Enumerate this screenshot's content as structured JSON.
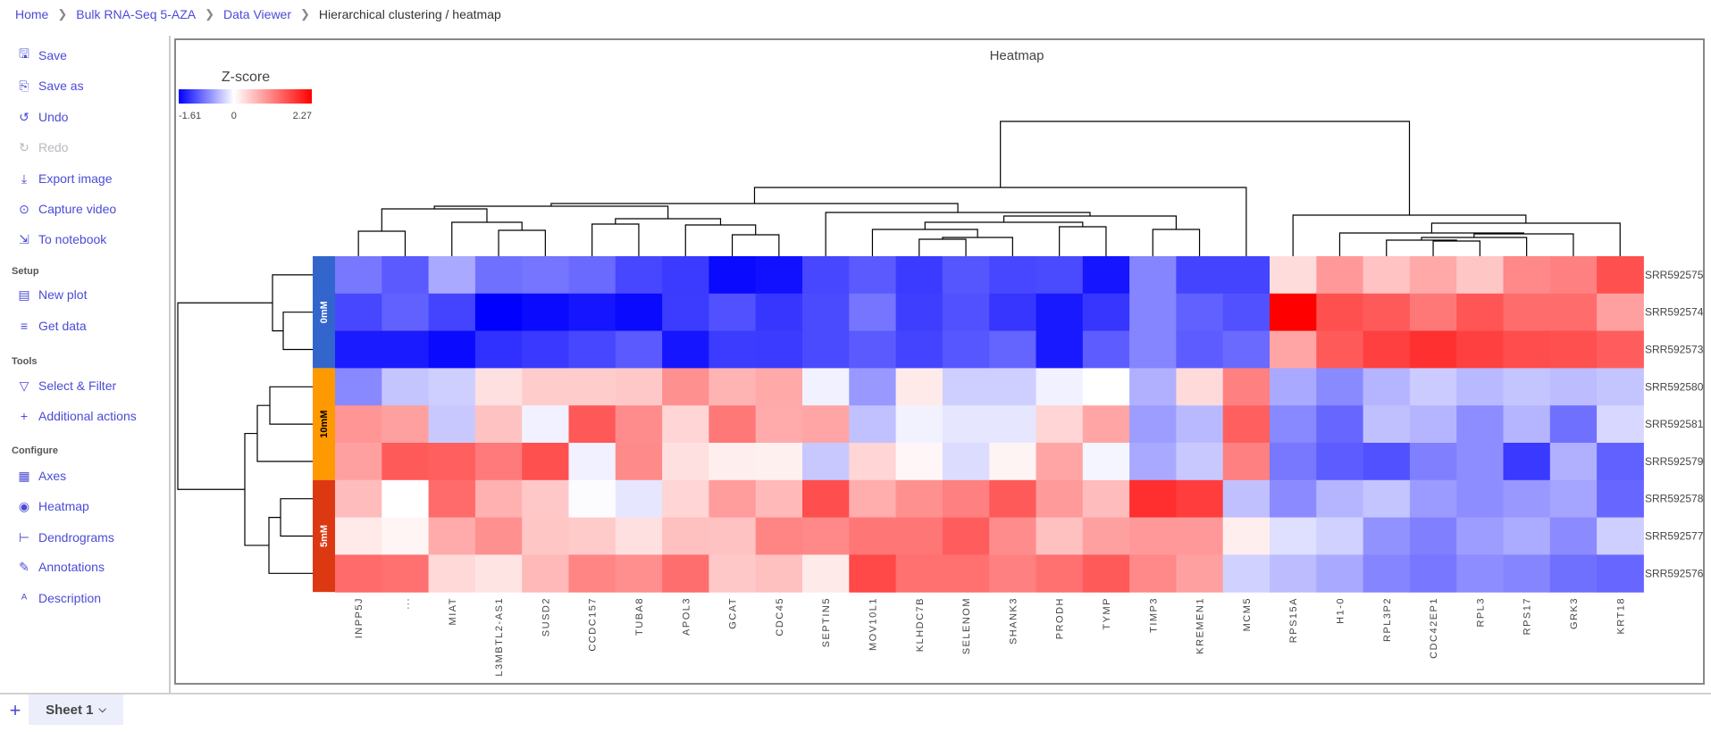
{
  "breadcrumb": [
    "Home",
    "Bulk RNA-Seq 5-AZA",
    "Data Viewer",
    "Hierarchical clustering / heatmap"
  ],
  "sidebar": {
    "items_top": [
      {
        "label": "Save",
        "icon": "save-icon"
      },
      {
        "label": "Save as",
        "icon": "copy-icon"
      },
      {
        "label": "Undo",
        "icon": "undo-icon"
      },
      {
        "label": "Redo",
        "icon": "redo-icon",
        "disabled": true
      },
      {
        "label": "Export image",
        "icon": "download-icon"
      },
      {
        "label": "Capture video",
        "icon": "camera-icon"
      },
      {
        "label": "To notebook",
        "icon": "notebook-icon"
      }
    ],
    "setup_label": "Setup",
    "setup": [
      {
        "label": "New plot",
        "icon": "new-plot-icon"
      },
      {
        "label": "Get data",
        "icon": "database-icon"
      }
    ],
    "tools_label": "Tools",
    "tools": [
      {
        "label": "Select & Filter",
        "icon": "filter-icon"
      },
      {
        "label": "Additional actions",
        "icon": "plus-icon"
      }
    ],
    "configure_label": "Configure",
    "configure": [
      {
        "label": "Axes",
        "icon": "grid-icon"
      },
      {
        "label": "Heatmap",
        "icon": "heatmap-icon"
      },
      {
        "label": "Dendrograms",
        "icon": "dendrogram-icon"
      },
      {
        "label": "Annotations",
        "icon": "pen-icon"
      },
      {
        "label": "Description",
        "icon": "text-icon"
      }
    ]
  },
  "sheets": {
    "add": "+",
    "tabs": [
      {
        "label": "Sheet 1",
        "active": true
      }
    ]
  },
  "chart_data": {
    "type": "heatmap",
    "title": "Heatmap",
    "colorbar": {
      "title": "Z-score",
      "min": -1.61,
      "max": 2.27,
      "tick_labels": [
        "-1.61",
        "0",
        "2.27"
      ],
      "colors": [
        "#0000ff",
        "#ffffff",
        "#ff0000"
      ]
    },
    "columns": [
      "INPP5J",
      "...",
      "MIAT",
      "L3MBTL2-AS1",
      "SUSD2",
      "CCDC157",
      "TUBA8",
      "APOL3",
      "GCAT",
      "CDC45",
      "SEPTIN5",
      "MOV10L1",
      "KLHDC7B",
      "SELENOM",
      "SHANK3",
      "PRODH",
      "TYMP",
      "TIMP3",
      "KREMEN1",
      "MCM5",
      "RPS15A",
      "H1-0",
      "RPL3P2",
      "CDC42EP1",
      "RPL3",
      "RPS17",
      "GRK3",
      "KRT18"
    ],
    "rows": [
      "SRR592575",
      "SRR592574",
      "SRR592573",
      "SRR592580",
      "SRR592581",
      "SRR592579",
      "SRR592578",
      "SRR592577",
      "SRR592576"
    ],
    "groups": [
      {
        "label": "0mM",
        "color": "#3366cc",
        "text_color": "#ffffff",
        "row_count": 3
      },
      {
        "label": "10mM",
        "color": "#ff9900",
        "text_color": "#000000",
        "row_count": 3
      },
      {
        "label": "5mM",
        "color": "#dc3912",
        "text_color": "#ffffff",
        "row_count": 3
      }
    ],
    "values": [
      [
        -0.85,
        -1.04,
        -0.54,
        -0.9,
        -0.87,
        -0.94,
        -1.16,
        -1.24,
        -1.55,
        -1.5,
        -1.16,
        -1.04,
        -1.24,
        -1.07,
        -1.16,
        -1.14,
        -1.48,
        -0.77,
        -1.18,
        -1.18,
        0.31,
        0.91,
        0.53,
        0.77,
        0.51,
        1.06,
        1.13,
        1.56
      ],
      [
        -1.16,
        -1.0,
        -1.18,
        -1.61,
        -1.55,
        -1.48,
        -1.55,
        -1.23,
        -1.1,
        -1.27,
        -1.14,
        -0.87,
        -1.22,
        -1.1,
        -1.27,
        -1.45,
        -1.27,
        -0.77,
        -1.0,
        -1.1,
        2.27,
        1.56,
        1.47,
        1.2,
        1.51,
        1.31,
        1.31,
        0.85
      ],
      [
        -1.44,
        -1.44,
        -1.55,
        -1.3,
        -1.25,
        -1.16,
        -1.04,
        -1.48,
        -1.23,
        -1.24,
        -1.14,
        -1.04,
        -1.18,
        -1.06,
        -0.98,
        -1.45,
        -1.02,
        -0.77,
        -1.02,
        -0.94,
        0.8,
        1.47,
        1.7,
        1.84,
        1.7,
        1.59,
        1.56,
        1.44
      ],
      [
        -0.75,
        -0.37,
        -0.3,
        0.28,
        0.45,
        0.45,
        0.49,
        0.99,
        0.67,
        0.77,
        -0.09,
        -0.65,
        0.19,
        -0.3,
        -0.3,
        -0.09,
        0,
        -0.5,
        0.33,
        1.13,
        -0.54,
        -0.74,
        -0.47,
        -0.33,
        -0.44,
        -0.37,
        -0.42,
        -0.37
      ],
      [
        0.94,
        0.85,
        -0.35,
        0.54,
        -0.09,
        1.49,
        1.02,
        0.37,
        1.2,
        0.75,
        0.8,
        -0.39,
        -0.08,
        -0.16,
        -0.16,
        0.37,
        0.8,
        -0.62,
        -0.44,
        1.42,
        -0.75,
        -0.96,
        -0.4,
        -0.47,
        -0.72,
        -0.47,
        -0.9,
        -0.25
      ],
      [
        0.85,
        1.47,
        1.42,
        1.18,
        1.56,
        -0.09,
        1.04,
        0.28,
        0.15,
        0.13,
        -0.35,
        0.37,
        0.07,
        -0.22,
        0.1,
        0.8,
        -0.06,
        -0.54,
        -0.35,
        1.13,
        -0.85,
        -1.03,
        -1.1,
        -0.8,
        -0.72,
        -1.25,
        -0.5,
        -1.0
      ],
      [
        0.6,
        0,
        1.33,
        0.7,
        0.49,
        -0.02,
        -0.16,
        0.37,
        0.88,
        0.62,
        1.58,
        0.73,
        0.99,
        1.13,
        1.47,
        0.9,
        0.6,
        1.85,
        1.73,
        -0.4,
        -0.73,
        -0.47,
        -0.37,
        -0.63,
        -0.72,
        -0.65,
        -0.57,
        -0.96
      ],
      [
        0.2,
        0.09,
        0.75,
        0.99,
        0.51,
        0.47,
        0.28,
        0.56,
        0.54,
        1.09,
        1.06,
        1.22,
        1.22,
        1.44,
        1.02,
        0.56,
        0.85,
        0.91,
        0.91,
        0.15,
        -0.2,
        -0.29,
        -0.69,
        -0.8,
        -0.62,
        -0.53,
        -0.73,
        -0.31
      ],
      [
        1.33,
        1.27,
        0.35,
        0.24,
        0.62,
        1.09,
        1.0,
        1.29,
        0.49,
        0.56,
        0.19,
        1.63,
        1.27,
        1.27,
        1.13,
        1.27,
        1.47,
        1.06,
        0.85,
        -0.29,
        -0.42,
        -0.54,
        -0.77,
        -0.86,
        -0.72,
        -0.77,
        -0.9,
        -0.96
      ]
    ]
  }
}
